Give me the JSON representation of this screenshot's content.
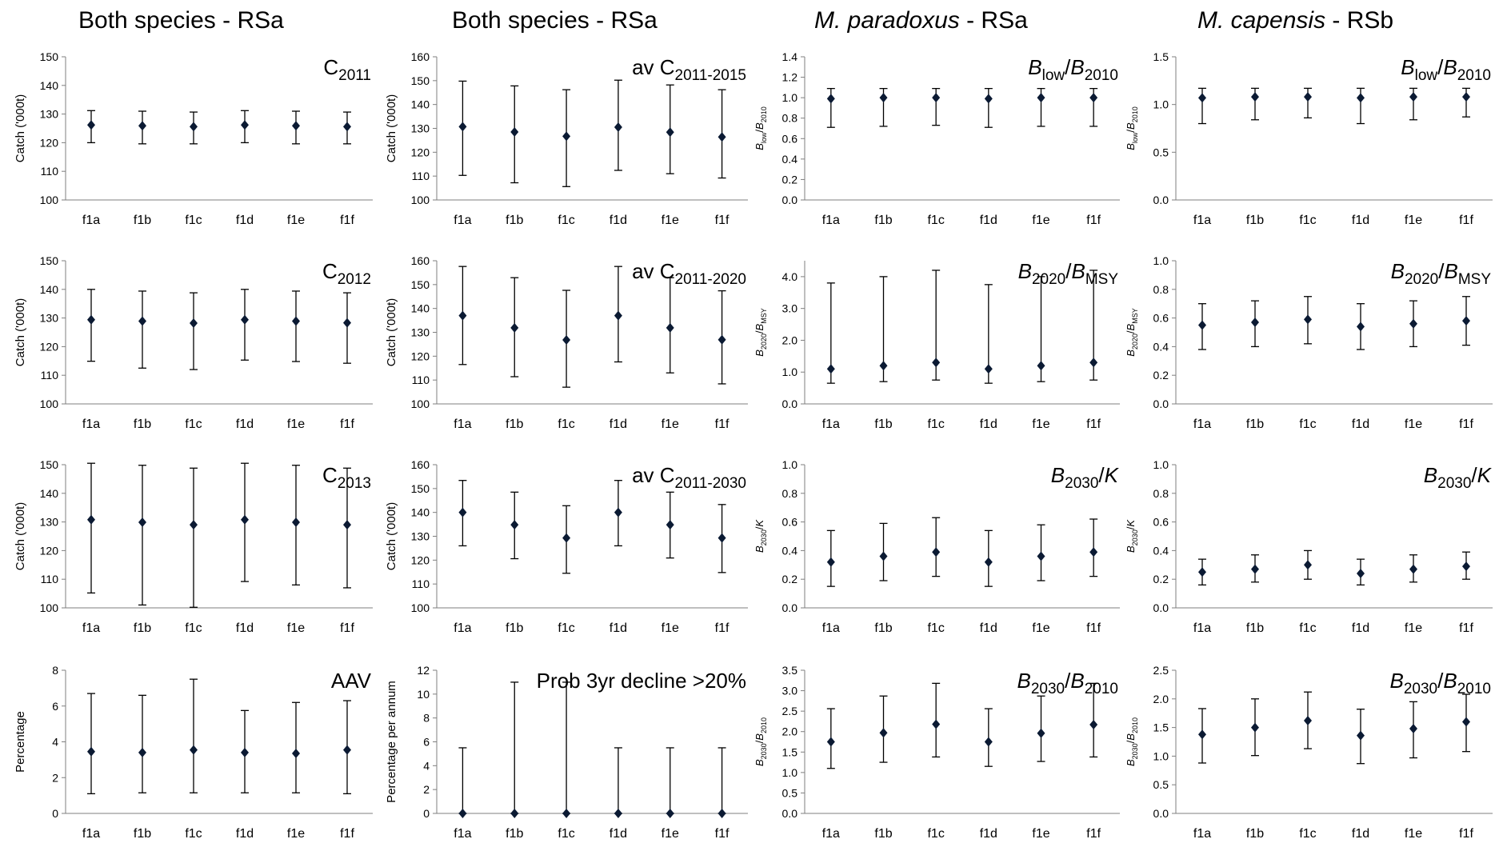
{
  "column_titles": [
    {
      "species": "Both species",
      "italic": false,
      "suffix": " - RSa"
    },
    {
      "species": "Both species",
      "italic": false,
      "suffix": " - RSa"
    },
    {
      "species": "M. paradoxus",
      "italic": true,
      "suffix": " - RSa"
    },
    {
      "species": "M. capensis",
      "italic": true,
      "suffix": " - RSb"
    }
  ],
  "marker_color": "#0b1a33",
  "chart_data": [
    {
      "type": "scatter",
      "row": 0,
      "col": 0,
      "title": "C2011",
      "title_parts": [
        [
          "C",
          ""
        ],
        [
          "2011",
          "sub"
        ]
      ],
      "ylabel": "Catch ('000t)",
      "ylabel_parts": [
        [
          "Catch ('000t)",
          ""
        ]
      ],
      "ylim": [
        100,
        150
      ],
      "yticks": [
        100,
        110,
        120,
        130,
        140,
        150
      ],
      "ydecimals": 0,
      "categories": [
        "f1a",
        "f1b",
        "f1c",
        "f1d",
        "f1e",
        "f1f"
      ],
      "values": [
        126.2,
        125.9,
        125.6,
        126.2,
        125.9,
        125.6
      ],
      "lower": [
        120,
        119.6,
        119.6,
        120,
        119.6,
        119.6
      ],
      "upper": [
        131.2,
        131,
        130.7,
        131.2,
        131,
        130.7
      ]
    },
    {
      "type": "scatter",
      "row": 0,
      "col": 1,
      "title": "av C2011-2015",
      "title_parts": [
        [
          "av C",
          ""
        ],
        [
          "2011-2015",
          "sub"
        ]
      ],
      "ylabel": "Catch ('000t)",
      "ylabel_parts": [
        [
          "Catch ('000t)",
          ""
        ]
      ],
      "ylim": [
        100,
        160
      ],
      "yticks": [
        100,
        110,
        120,
        130,
        140,
        150,
        160
      ],
      "ydecimals": 0,
      "categories": [
        "f1a",
        "f1b",
        "f1c",
        "f1d",
        "f1e",
        "f1f"
      ],
      "values": [
        130.7,
        128.5,
        126.7,
        130.5,
        128.4,
        126.4
      ],
      "lower": [
        110.3,
        107.2,
        105.6,
        112.4,
        111,
        109.2
      ],
      "upper": [
        149.8,
        147.8,
        146.2,
        150.2,
        148.2,
        146.2
      ]
    },
    {
      "type": "scatter",
      "row": 0,
      "col": 2,
      "title": "Blow/B2010",
      "title_parts": [
        [
          "B",
          "i"
        ],
        [
          "low",
          "sub"
        ],
        [
          "/",
          ""
        ],
        [
          "B",
          "i"
        ],
        [
          "2010",
          "sub"
        ]
      ],
      "ylabel": "Blow/B2010",
      "ylabel_parts": [
        [
          "B",
          "i"
        ],
        [
          "low",
          "sub"
        ],
        [
          "/",
          ""
        ],
        [
          "B",
          "i"
        ],
        [
          "2010",
          "sub"
        ]
      ],
      "ylim": [
        0,
        1.4
      ],
      "yticks": [
        0,
        0.2,
        0.4,
        0.6,
        0.8,
        1.0,
        1.2,
        1.4
      ],
      "ydecimals": 1,
      "categories": [
        "f1a",
        "f1b",
        "f1c",
        "f1d",
        "f1e",
        "f1f"
      ],
      "values": [
        0.99,
        1.0,
        1.0,
        0.99,
        1.0,
        1.0
      ],
      "lower": [
        0.71,
        0.72,
        0.73,
        0.71,
        0.72,
        0.72
      ],
      "upper": [
        1.09,
        1.09,
        1.09,
        1.09,
        1.09,
        1.09
      ]
    },
    {
      "type": "scatter",
      "row": 0,
      "col": 3,
      "title": "Blow/B2010",
      "title_parts": [
        [
          "B",
          "i"
        ],
        [
          "low",
          "sub"
        ],
        [
          "/",
          ""
        ],
        [
          "B",
          "i"
        ],
        [
          "2010",
          "sub"
        ]
      ],
      "ylabel": "Blow/B2010",
      "ylabel_parts": [
        [
          "B",
          "i"
        ],
        [
          "low",
          "sub"
        ],
        [
          "/",
          ""
        ],
        [
          "B",
          "i"
        ],
        [
          "2010",
          "sub"
        ]
      ],
      "ylim": [
        0,
        1.5
      ],
      "yticks": [
        0,
        0.5,
        1.0,
        1.5
      ],
      "ydecimals": 1,
      "categories": [
        "f1a",
        "f1b",
        "f1c",
        "f1d",
        "f1e",
        "f1f"
      ],
      "values": [
        1.07,
        1.08,
        1.08,
        1.07,
        1.08,
        1.08
      ],
      "lower": [
        0.8,
        0.84,
        0.86,
        0.8,
        0.84,
        0.87
      ],
      "upper": [
        1.17,
        1.17,
        1.17,
        1.17,
        1.17,
        1.17
      ]
    },
    {
      "type": "scatter",
      "row": 1,
      "col": 0,
      "title": "C2012",
      "title_parts": [
        [
          "C",
          ""
        ],
        [
          "2012",
          "sub"
        ]
      ],
      "ylabel": "Catch ('000t)",
      "ylabel_parts": [
        [
          "Catch ('000t)",
          ""
        ]
      ],
      "ylim": [
        100,
        150
      ],
      "yticks": [
        100,
        110,
        120,
        130,
        140,
        150
      ],
      "ydecimals": 0,
      "categories": [
        "f1a",
        "f1b",
        "f1c",
        "f1d",
        "f1e",
        "f1f"
      ],
      "values": [
        129.4,
        128.9,
        128.2,
        129.4,
        128.9,
        128.3
      ],
      "lower": [
        114.9,
        112.5,
        112,
        115.3,
        114.8,
        114.2
      ],
      "upper": [
        140,
        139.4,
        138.8,
        140,
        139.4,
        138.8
      ]
    },
    {
      "type": "scatter",
      "row": 1,
      "col": 1,
      "title": "av C2011-2020",
      "title_parts": [
        [
          "av C",
          ""
        ],
        [
          "2011-2020",
          "sub"
        ]
      ],
      "ylabel": "Catch ('000t)",
      "ylabel_parts": [
        [
          "Catch ('000t)",
          ""
        ]
      ],
      "ylim": [
        100,
        160
      ],
      "yticks": [
        100,
        110,
        120,
        130,
        140,
        150,
        160
      ],
      "ydecimals": 0,
      "categories": [
        "f1a",
        "f1b",
        "f1c",
        "f1d",
        "f1e",
        "f1f"
      ],
      "values": [
        137,
        131.9,
        126.8,
        137,
        131.9,
        126.9
      ],
      "lower": [
        116.5,
        111.4,
        107,
        117.6,
        113,
        108.4
      ],
      "upper": [
        157.6,
        152.9,
        147.6,
        157.6,
        152.9,
        147.4
      ]
    },
    {
      "type": "scatter",
      "row": 1,
      "col": 2,
      "title": "B2020/BMSY",
      "title_parts": [
        [
          "B",
          "i"
        ],
        [
          "2020",
          "sub"
        ],
        [
          "/",
          ""
        ],
        [
          "B",
          "i"
        ],
        [
          "MSY",
          "sub"
        ]
      ],
      "ylabel": "B2020/BMSY",
      "ylabel_parts": [
        [
          "B",
          "i"
        ],
        [
          "2020",
          "sub"
        ],
        [
          "/",
          ""
        ],
        [
          "B",
          "i"
        ],
        [
          "MSY",
          "sub"
        ]
      ],
      "ylim": [
        0,
        4.5
      ],
      "yticks": [
        0,
        1.0,
        2.0,
        3.0,
        4.0
      ],
      "ydecimals": 1,
      "categories": [
        "f1a",
        "f1b",
        "f1c",
        "f1d",
        "f1e",
        "f1f"
      ],
      "values": [
        1.1,
        1.2,
        1.3,
        1.1,
        1.2,
        1.3
      ],
      "lower": [
        0.65,
        0.7,
        0.75,
        0.65,
        0.7,
        0.75
      ],
      "upper": [
        3.8,
        4.0,
        4.2,
        3.75,
        4.0,
        4.2
      ]
    },
    {
      "type": "scatter",
      "row": 1,
      "col": 3,
      "title": "B2020/BMSY",
      "title_parts": [
        [
          "B",
          "i"
        ],
        [
          "2020",
          "sub"
        ],
        [
          "/",
          ""
        ],
        [
          "B",
          "i"
        ],
        [
          "MSY",
          "sub"
        ]
      ],
      "ylabel": "B2020/BMSY",
      "ylabel_parts": [
        [
          "B",
          "i"
        ],
        [
          "2020",
          "sub"
        ],
        [
          "/",
          ""
        ],
        [
          "B",
          "i"
        ],
        [
          "MSY",
          "sub"
        ]
      ],
      "ylim": [
        0,
        1.0
      ],
      "yticks": [
        0,
        0.2,
        0.4,
        0.6,
        0.8,
        1.0
      ],
      "ydecimals": 1,
      "categories": [
        "f1a",
        "f1b",
        "f1c",
        "f1d",
        "f1e",
        "f1f"
      ],
      "values": [
        0.55,
        0.57,
        0.59,
        0.54,
        0.56,
        0.58
      ],
      "lower": [
        0.38,
        0.4,
        0.42,
        0.38,
        0.4,
        0.41
      ],
      "upper": [
        0.7,
        0.72,
        0.75,
        0.7,
        0.72,
        0.75
      ]
    },
    {
      "type": "scatter",
      "row": 2,
      "col": 0,
      "title": "C2013",
      "title_parts": [
        [
          "C",
          ""
        ],
        [
          "2013",
          "sub"
        ]
      ],
      "ylabel": "Catch ('000t)",
      "ylabel_parts": [
        [
          "Catch ('000t)",
          ""
        ]
      ],
      "ylim": [
        100,
        150
      ],
      "yticks": [
        100,
        110,
        120,
        130,
        140,
        150
      ],
      "ydecimals": 0,
      "categories": [
        "f1a",
        "f1b",
        "f1c",
        "f1d",
        "f1e",
        "f1f"
      ],
      "values": [
        130.8,
        129.9,
        129,
        130.8,
        129.9,
        129
      ],
      "lower": [
        105.2,
        101,
        100.2,
        109.2,
        108,
        107
      ],
      "upper": [
        150.5,
        149.8,
        148.8,
        150.5,
        149.8,
        148.8
      ]
    },
    {
      "type": "scatter",
      "row": 2,
      "col": 1,
      "title": "av C2011-2030",
      "title_parts": [
        [
          "av C",
          ""
        ],
        [
          "2011-2030",
          "sub"
        ]
      ],
      "ylabel": "Catch ('000t)",
      "ylabel_parts": [
        [
          "Catch ('000t)",
          ""
        ]
      ],
      "ylim": [
        100,
        160
      ],
      "yticks": [
        100,
        110,
        120,
        130,
        140,
        150,
        160
      ],
      "ydecimals": 0,
      "categories": [
        "f1a",
        "f1b",
        "f1c",
        "f1d",
        "f1e",
        "f1f"
      ],
      "values": [
        140,
        134.8,
        129.3,
        140,
        134.8,
        129.3
      ],
      "lower": [
        126,
        120.6,
        114.5,
        126,
        120.9,
        114.8
      ],
      "upper": [
        153.4,
        148.5,
        142.8,
        153.4,
        148.5,
        143.3
      ]
    },
    {
      "type": "scatter",
      "row": 2,
      "col": 2,
      "title": "B2030/K",
      "title_parts": [
        [
          "B",
          "i"
        ],
        [
          "2030",
          "sub"
        ],
        [
          "/",
          ""
        ],
        [
          "K",
          "i"
        ]
      ],
      "ylabel": "B2030/K",
      "ylabel_parts": [
        [
          "B",
          "i"
        ],
        [
          "2030",
          "sub"
        ],
        [
          "/",
          ""
        ],
        [
          "K",
          "i"
        ]
      ],
      "ylim": [
        0,
        1.0
      ],
      "yticks": [
        0,
        0.2,
        0.4,
        0.6,
        0.8,
        1.0
      ],
      "ydecimals": 1,
      "categories": [
        "f1a",
        "f1b",
        "f1c",
        "f1d",
        "f1e",
        "f1f"
      ],
      "values": [
        0.32,
        0.36,
        0.39,
        0.32,
        0.36,
        0.39
      ],
      "lower": [
        0.15,
        0.19,
        0.22,
        0.15,
        0.19,
        0.22
      ],
      "upper": [
        0.54,
        0.59,
        0.63,
        0.54,
        0.58,
        0.62
      ]
    },
    {
      "type": "scatter",
      "row": 2,
      "col": 3,
      "title": "B2030/K",
      "title_parts": [
        [
          "B",
          "i"
        ],
        [
          "2030",
          "sub"
        ],
        [
          "/",
          ""
        ],
        [
          "K",
          "i"
        ]
      ],
      "ylabel": "B2030/K",
      "ylabel_parts": [
        [
          "B",
          "i"
        ],
        [
          "2030",
          "sub"
        ],
        [
          "/",
          ""
        ],
        [
          "K",
          "i"
        ]
      ],
      "ylim": [
        0,
        1.0
      ],
      "yticks": [
        0,
        0.2,
        0.4,
        0.6,
        0.8,
        1.0
      ],
      "ydecimals": 1,
      "categories": [
        "f1a",
        "f1b",
        "f1c",
        "f1d",
        "f1e",
        "f1f"
      ],
      "values": [
        0.25,
        0.27,
        0.3,
        0.24,
        0.27,
        0.29
      ],
      "lower": [
        0.16,
        0.18,
        0.2,
        0.16,
        0.18,
        0.2
      ],
      "upper": [
        0.34,
        0.37,
        0.4,
        0.34,
        0.37,
        0.39
      ]
    },
    {
      "type": "scatter",
      "row": 3,
      "col": 0,
      "title": "AAV",
      "title_parts": [
        [
          "AAV",
          ""
        ]
      ],
      "ylabel": "Percentage",
      "ylabel_parts": [
        [
          "Percentage",
          ""
        ]
      ],
      "ylim": [
        0,
        8
      ],
      "yticks": [
        0,
        2,
        4,
        6,
        8
      ],
      "ydecimals": 0,
      "categories": [
        "f1a",
        "f1b",
        "f1c",
        "f1d",
        "f1e",
        "f1f"
      ],
      "values": [
        3.45,
        3.4,
        3.55,
        3.4,
        3.35,
        3.55
      ],
      "lower": [
        1.1,
        1.15,
        1.15,
        1.15,
        1.15,
        1.1
      ],
      "upper": [
        6.7,
        6.6,
        7.5,
        5.75,
        6.2,
        6.3
      ]
    },
    {
      "type": "scatter",
      "row": 3,
      "col": 1,
      "title": "Prob 3yr decline >20%",
      "title_parts": [
        [
          "Prob 3yr decline >20%",
          ""
        ]
      ],
      "ylabel": "Percentage per annum",
      "ylabel_parts": [
        [
          "Percentage per annum",
          ""
        ]
      ],
      "ylim": [
        0,
        12
      ],
      "yticks": [
        0,
        2,
        4,
        6,
        8,
        10,
        12
      ],
      "ydecimals": 0,
      "categories": [
        "f1a",
        "f1b",
        "f1c",
        "f1d",
        "f1e",
        "f1f"
      ],
      "values": [
        0,
        0,
        0,
        0,
        0,
        0
      ],
      "lower": [
        0,
        0,
        0,
        0,
        0,
        0
      ],
      "upper": [
        5.5,
        11,
        11,
        5.5,
        5.5,
        5.5
      ]
    },
    {
      "type": "scatter",
      "row": 3,
      "col": 2,
      "title": "B2030/B2010",
      "title_parts": [
        [
          "B",
          "i"
        ],
        [
          "2030",
          "sub"
        ],
        [
          "/",
          ""
        ],
        [
          "B",
          "i"
        ],
        [
          "2010",
          "sub"
        ]
      ],
      "ylabel": "B2030/B2010",
      "ylabel_parts": [
        [
          "B",
          "i"
        ],
        [
          "2030",
          "sub"
        ],
        [
          "/",
          ""
        ],
        [
          "B",
          "i"
        ],
        [
          "2010",
          "sub"
        ]
      ],
      "ylim": [
        0,
        3.5
      ],
      "yticks": [
        0,
        0.5,
        1.0,
        1.5,
        2.0,
        2.5,
        3.0,
        3.5
      ],
      "ydecimals": 1,
      "categories": [
        "f1a",
        "f1b",
        "f1c",
        "f1d",
        "f1e",
        "f1f"
      ],
      "values": [
        1.75,
        1.97,
        2.18,
        1.75,
        1.96,
        2.17
      ],
      "lower": [
        1.1,
        1.25,
        1.38,
        1.15,
        1.27,
        1.38
      ],
      "upper": [
        2.56,
        2.87,
        3.18,
        2.56,
        2.87,
        3.18
      ]
    },
    {
      "type": "scatter",
      "row": 3,
      "col": 3,
      "title": "B2030/B2010",
      "title_parts": [
        [
          "B",
          "i"
        ],
        [
          "2030",
          "sub"
        ],
        [
          "/",
          ""
        ],
        [
          "B",
          "i"
        ],
        [
          "2010",
          "sub"
        ]
      ],
      "ylabel": "B2030/B2010",
      "ylabel_parts": [
        [
          "B",
          "i"
        ],
        [
          "2030",
          "sub"
        ],
        [
          "/",
          ""
        ],
        [
          "B",
          "i"
        ],
        [
          "2010",
          "sub"
        ]
      ],
      "ylim": [
        0,
        2.5
      ],
      "yticks": [
        0,
        0.5,
        1.0,
        1.5,
        2.0,
        2.5
      ],
      "ydecimals": 1,
      "categories": [
        "f1a",
        "f1b",
        "f1c",
        "f1d",
        "f1e",
        "f1f"
      ],
      "values": [
        1.38,
        1.5,
        1.62,
        1.36,
        1.48,
        1.6
      ],
      "lower": [
        0.88,
        1.01,
        1.13,
        0.87,
        0.97,
        1.08
      ],
      "upper": [
        1.83,
        2.0,
        2.12,
        1.82,
        1.95,
        2.08
      ]
    }
  ]
}
